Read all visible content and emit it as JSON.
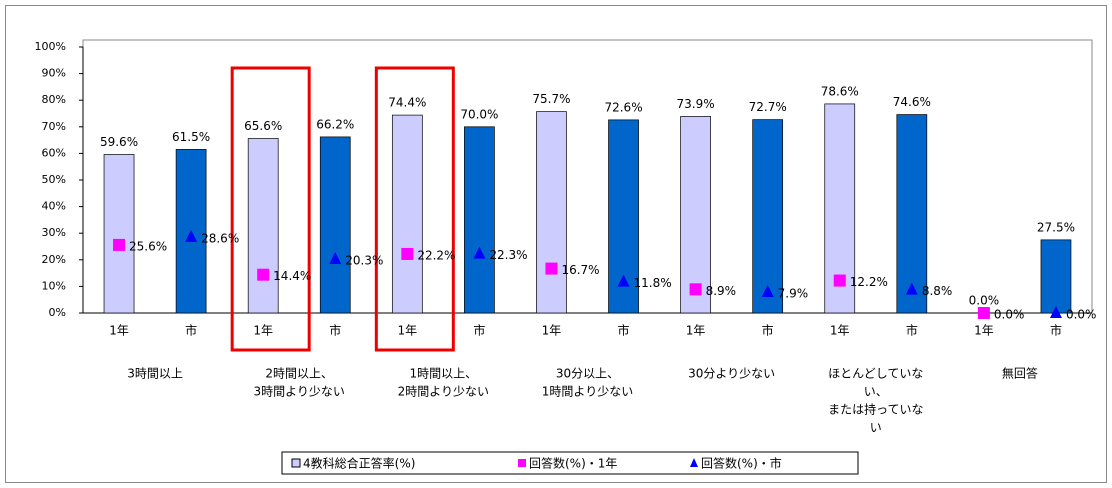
{
  "chart_data": {
    "type": "bar",
    "categories": [
      "1年",
      "市",
      "1年",
      "市",
      "1年",
      "市",
      "1年",
      "市",
      "1年",
      "市",
      "1年",
      "市",
      "1年",
      "市"
    ],
    "groups": [
      [
        "3時間以上"
      ],
      [
        "2時間以上、",
        "3時間より少ない"
      ],
      [
        "1時間以上、",
        "2時間より少ない"
      ],
      [
        "30分以上、",
        "1時間より少ない"
      ],
      [
        "30分より少ない"
      ],
      [
        "ほとんどしていな",
        "い、",
        "または持っていな",
        "い"
      ],
      [
        "無回答"
      ]
    ],
    "series": [
      {
        "name": "4教科総合正答率(%)",
        "kind": "bar",
        "color": "#ccccff",
        "colors": [
          "#ccccff",
          "#0066cc",
          "#ccccff",
          "#0066cc",
          "#ccccff",
          "#0066cc",
          "#ccccff",
          "#0066cc",
          "#ccccff",
          "#0066cc",
          "#ccccff",
          "#0066cc",
          "#ccccff",
          "#0066cc"
        ],
        "values": [
          59.6,
          61.5,
          65.6,
          66.2,
          74.4,
          70.0,
          75.7,
          72.6,
          73.9,
          72.7,
          78.6,
          74.6,
          0.0,
          27.5
        ],
        "value_labels": [
          "59.6%",
          "61.5%",
          "65.6%",
          "66.2%",
          "74.4%",
          "70.0%",
          "75.7%",
          "72.6%",
          "73.9%",
          "72.7%",
          "78.6%",
          "74.6%",
          "0.0%",
          "27.5%"
        ]
      },
      {
        "name": "回答数(%)・1年",
        "kind": "square",
        "color": "#ff00ff",
        "values": [
          25.6,
          null,
          14.4,
          null,
          22.2,
          null,
          16.7,
          null,
          8.9,
          null,
          12.2,
          null,
          0.0,
          null
        ],
        "value_labels": [
          "25.6%",
          null,
          "14.4%",
          null,
          "22.2%",
          null,
          "16.7%",
          null,
          "8.9%",
          null,
          "12.2%",
          null,
          "0.0%",
          null
        ]
      },
      {
        "name": "回答数(%)・市",
        "kind": "triangle",
        "color": "#0000ff",
        "values": [
          null,
          28.6,
          null,
          20.3,
          null,
          22.3,
          null,
          11.8,
          null,
          7.9,
          null,
          8.8,
          null,
          0.0
        ],
        "value_labels": [
          null,
          "28.6%",
          null,
          "20.3%",
          null,
          "22.3%",
          null,
          "11.8%",
          null,
          "7.9%",
          null,
          "8.8%",
          null,
          "0.0%"
        ]
      }
    ],
    "ylim": [
      0,
      100
    ],
    "yticks": [
      {
        "value": 0,
        "label": "0%"
      },
      {
        "value": 10,
        "label": "10%"
      },
      {
        "value": 20,
        "label": "20%"
      },
      {
        "value": 30,
        "label": "30%"
      },
      {
        "value": 40,
        "label": "40%"
      },
      {
        "value": 50,
        "label": "50%"
      },
      {
        "value": 60,
        "label": "60%"
      },
      {
        "value": 70,
        "label": "70%"
      },
      {
        "value": 80,
        "label": "80%"
      },
      {
        "value": 90,
        "label": "90%"
      },
      {
        "value": 100,
        "label": "100%"
      }
    ],
    "grid": false,
    "legend": "bottom"
  }
}
